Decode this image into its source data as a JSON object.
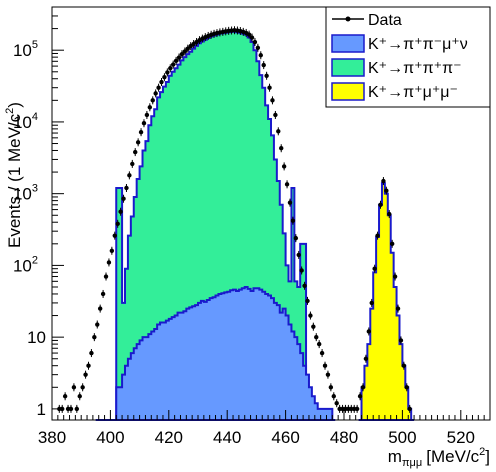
{
  "chart_data": {
    "type": "histogram",
    "title": "",
    "xlabel": "m_{πμμ} [MeV/c²]",
    "xlabel_main": "m",
    "xlabel_sub": "πμμ",
    "xlabel_unit": "[MeV/c",
    "xlabel_unit_sup": "2",
    "xlabel_unit_close": "]",
    "ylabel": "Events / (1 MeV/c²)",
    "ylabel_main": "Events / (1 MeV/c",
    "ylabel_sup": "2",
    "ylabel_close": ")",
    "xlim": [
      380,
      530
    ],
    "ylim": [
      0.7,
      400000
    ],
    "log_y": true,
    "grid": false,
    "legend_position": "top-right",
    "x_ticks": [
      "380",
      "400",
      "420",
      "440",
      "460",
      "480",
      "500",
      "520"
    ],
    "x_tick_values": [
      380,
      400,
      420,
      440,
      460,
      480,
      500,
      520
    ],
    "y_ticks": [
      {
        "value": 1,
        "base": "1",
        "exp": ""
      },
      {
        "value": 10,
        "base": "10",
        "exp": ""
      },
      {
        "value": 100,
        "base": "10",
        "exp": "2"
      },
      {
        "value": 1000,
        "base": "10",
        "exp": "3"
      },
      {
        "value": 10000,
        "base": "10",
        "exp": "4"
      },
      {
        "value": 100000,
        "base": "10",
        "exp": "5"
      }
    ],
    "colors": {
      "k3pi": "#33ee99",
      "k3pi_edge": "#1a1acc",
      "k2pimunu": "#6699ff",
      "kpimumu": "#ffff00",
      "data": "#000000"
    },
    "legend": [
      {
        "label": "Data",
        "kind": "data"
      },
      {
        "label": "K⁺→π⁺π⁻μ⁺ν",
        "kind": "k2pimunu"
      },
      {
        "label": "K⁺→π⁺π⁺π⁻",
        "kind": "k3pi"
      },
      {
        "label": "K⁺→π⁺μ⁺μ⁻",
        "kind": "kpimumu"
      }
    ],
    "series": [
      {
        "name": "K⁺→π⁺π⁺π⁻",
        "x": [
          395,
          396,
          397,
          398,
          399,
          400,
          401,
          402,
          403,
          404,
          405,
          406,
          407,
          408,
          409,
          410,
          411,
          412,
          413,
          414,
          415,
          416,
          417,
          418,
          419,
          420,
          421,
          422,
          423,
          424,
          425,
          426,
          427,
          428,
          429,
          430,
          431,
          432,
          433,
          434,
          435,
          436,
          437,
          438,
          439,
          440,
          441,
          442,
          443,
          444,
          445,
          446,
          447,
          448,
          449,
          450,
          451,
          452,
          453,
          454,
          455,
          456,
          457,
          458,
          459,
          460,
          461,
          462,
          463,
          464,
          465,
          466,
          467,
          468,
          469,
          470,
          471
        ],
        "values": [
          0,
          0,
          0,
          0,
          0,
          0,
          0,
          1200,
          1200,
          30,
          90,
          260,
          480,
          900,
          1600,
          2400,
          4000,
          5400,
          9000,
          12000,
          15000,
          22000,
          26000,
          31000,
          36000,
          44000,
          50000,
          56000,
          63000,
          72000,
          80000,
          88000,
          95000,
          105000,
          115000,
          125000,
          132000,
          140000,
          148000,
          155000,
          160000,
          165000,
          170000,
          172000,
          175000,
          178000,
          180000,
          182000,
          178000,
          175000,
          170000,
          165000,
          150000,
          130000,
          100000,
          70000,
          45000,
          30000,
          17000,
          11000,
          6500,
          3000,
          1500,
          700,
          280,
          100,
          60,
          1200,
          60,
          50,
          200,
          200,
          0,
          0,
          0,
          0,
          0
        ]
      },
      {
        "name": "K⁺→π⁺π⁻μ⁺ν",
        "x": [
          395,
          396,
          397,
          398,
          399,
          400,
          401,
          402,
          403,
          404,
          405,
          406,
          407,
          408,
          409,
          410,
          411,
          412,
          413,
          414,
          415,
          416,
          417,
          418,
          419,
          420,
          421,
          422,
          423,
          424,
          425,
          426,
          427,
          428,
          429,
          430,
          431,
          432,
          433,
          434,
          435,
          436,
          437,
          438,
          439,
          440,
          441,
          442,
          443,
          444,
          445,
          446,
          447,
          448,
          449,
          450,
          451,
          452,
          453,
          454,
          455,
          456,
          457,
          458,
          459,
          460,
          461,
          462,
          463,
          464,
          465,
          466,
          467,
          468,
          469,
          470,
          471,
          472,
          473,
          474,
          475,
          476
        ],
        "values": [
          0,
          0,
          0,
          0,
          0,
          0,
          0,
          2,
          2,
          3,
          4,
          5,
          6,
          7,
          8,
          9,
          10,
          10,
          11,
          12,
          13,
          15,
          16,
          16,
          17,
          18,
          19,
          20,
          22,
          22,
          23,
          25,
          26,
          27,
          28,
          30,
          32,
          31,
          33,
          35,
          36,
          38,
          40,
          41,
          42,
          43,
          45,
          46,
          44,
          46,
          48,
          50,
          47,
          44,
          48,
          48,
          46,
          43,
          40,
          38,
          35,
          30,
          28,
          22,
          25,
          20,
          15,
          12,
          10,
          8,
          6,
          4,
          3,
          2,
          1.5,
          1.2,
          1,
          1,
          1,
          1,
          1,
          0
        ]
      },
      {
        "name": "K⁺→π⁺μ⁺μ⁻",
        "x": [
          485,
          486,
          487,
          488,
          489,
          490,
          491,
          492,
          493,
          494,
          495,
          496,
          497,
          498,
          499,
          500,
          501,
          502,
          503
        ],
        "values": [
          0,
          2,
          4,
          8,
          25,
          80,
          250,
          700,
          1400,
          1000,
          500,
          150,
          50,
          20,
          8,
          4,
          2,
          1,
          0
        ]
      },
      {
        "name": "Data",
        "x": [
          382,
          383,
          384,
          385,
          386,
          387,
          388,
          389,
          390,
          391,
          392,
          393,
          394,
          395,
          396,
          397,
          398,
          399,
          400,
          401,
          402,
          403,
          404,
          405,
          406,
          407,
          408,
          409,
          410,
          411,
          412,
          413,
          414,
          415,
          416,
          417,
          418,
          419,
          420,
          421,
          422,
          423,
          424,
          425,
          426,
          427,
          428,
          429,
          430,
          431,
          432,
          433,
          434,
          435,
          436,
          437,
          438,
          439,
          440,
          441,
          442,
          443,
          444,
          445,
          446,
          447,
          448,
          449,
          450,
          451,
          452,
          453,
          454,
          455,
          456,
          457,
          458,
          459,
          460,
          461,
          462,
          463,
          464,
          465,
          466,
          467,
          468,
          469,
          470,
          471,
          472,
          473,
          474,
          475,
          476,
          477,
          478,
          479,
          480,
          481,
          482,
          483,
          484,
          485,
          486,
          487,
          488,
          489,
          490,
          491,
          492,
          493,
          494,
          495,
          496,
          497,
          498,
          499,
          500,
          501,
          502
        ],
        "values": [
          1,
          1,
          1.5,
          1,
          1,
          2,
          1,
          1.5,
          2,
          3,
          4,
          6,
          10,
          15,
          25,
          40,
          70,
          110,
          160,
          260,
          380,
          560,
          850,
          1200,
          1800,
          2600,
          3800,
          5200,
          7200,
          9600,
          12500,
          16000,
          20000,
          25000,
          30000,
          36000,
          42000,
          49000,
          56000,
          63000,
          71000,
          79000,
          88000,
          96000,
          105000,
          114000,
          122000,
          130000,
          138000,
          145000,
          152000,
          158000,
          164000,
          169000,
          173000,
          177000,
          180000,
          183000,
          186000,
          188000,
          190000,
          188000,
          185000,
          180000,
          174000,
          165000,
          150000,
          130000,
          108000,
          85000,
          62000,
          44000,
          30000,
          20000,
          12500,
          7400,
          4300,
          2400,
          1350,
          750,
          420,
          240,
          140,
          85,
          52,
          32,
          20,
          14,
          10,
          8,
          6,
          4,
          3,
          2,
          1.5,
          1.2,
          1,
          1,
          1,
          1,
          1,
          1,
          1,
          1.5,
          2,
          5,
          12,
          30,
          90,
          260,
          700,
          1500,
          1100,
          520,
          200,
          70,
          25,
          9,
          4,
          2,
          1
        ]
      }
    ]
  }
}
